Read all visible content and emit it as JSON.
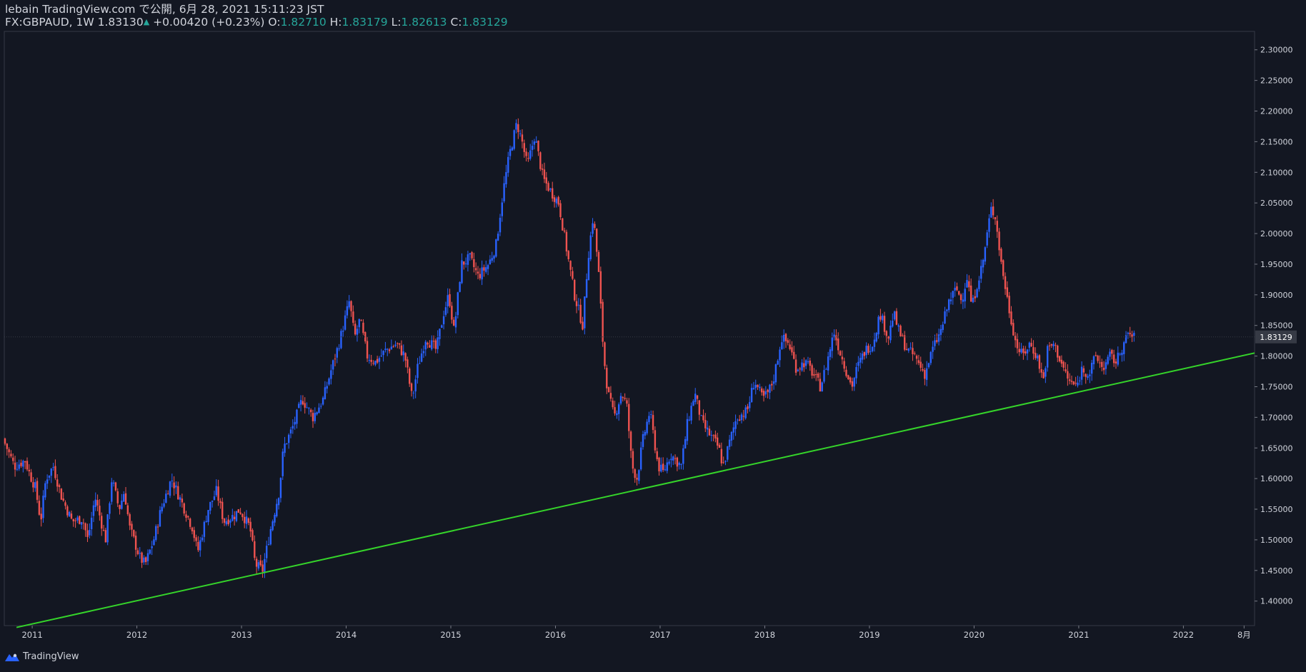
{
  "header": {
    "publish_line": "lebain TradingView.com で公開, 6月 28, 2021 15:11:23 JST",
    "symbol_prefix": "FX:GBPAUD, 1W",
    "last_price": "1.83130",
    "change": "+0.00420 (+0.23%)",
    "open_label": "O:",
    "open": "1.82710",
    "high_label": "H:",
    "high": "1.83179",
    "low_label": "L:",
    "low": "1.82613",
    "close_label": "C:",
    "close": "1.83129"
  },
  "footer": {
    "brand": "TradingView",
    "logo_icon": "tradingview-logo-icon"
  },
  "colors": {
    "background": "#131722",
    "up": "#2962ff",
    "down": "#ef5350",
    "trendline": "#35d42a",
    "text": "#d1d4dc",
    "accent": "#26a69a",
    "grid": "#2a2e39"
  },
  "chart_data": {
    "type": "candlestick",
    "title": "FX:GBPAUD, 1W",
    "ylim": [
      1.36,
      2.33
    ],
    "y_ticks": [
      "2.30000",
      "2.25000",
      "2.20000",
      "2.15000",
      "2.10000",
      "2.05000",
      "2.00000",
      "1.95000",
      "1.90000",
      "1.85000",
      "1.80000",
      "1.75000",
      "1.70000",
      "1.65000",
      "1.60000",
      "1.55000",
      "1.50000",
      "1.45000",
      "1.40000"
    ],
    "x_labels": [
      {
        "label": "2011",
        "t": 2011.0
      },
      {
        "label": "2012",
        "t": 2012.0
      },
      {
        "label": "2013",
        "t": 2013.0
      },
      {
        "label": "2014",
        "t": 2014.0
      },
      {
        "label": "2015",
        "t": 2015.0
      },
      {
        "label": "2016",
        "t": 2016.0
      },
      {
        "label": "2017",
        "t": 2017.0
      },
      {
        "label": "2018",
        "t": 2018.0
      },
      {
        "label": "2019",
        "t": 2019.0
      },
      {
        "label": "2020",
        "t": 2020.0
      },
      {
        "label": "2021",
        "t": 2021.0
      },
      {
        "label": "2022",
        "t": 2022.0
      },
      {
        "label": "8月",
        "t": 2022.58
      }
    ],
    "last_price_label": "1.83129",
    "last_price_value": 1.83129,
    "x_range": [
      2010.74,
      2022.68
    ],
    "trendline": {
      "t1": 2010.85,
      "p1": 1.357,
      "t2": 2022.68,
      "p2": 1.805
    },
    "price_path": [
      [
        2010.74,
        1.665
      ],
      [
        2010.85,
        1.62
      ],
      [
        2010.95,
        1.63
      ],
      [
        2011.0,
        1.605
      ],
      [
        2011.05,
        1.585
      ],
      [
        2011.1,
        1.53
      ],
      [
        2011.15,
        1.6
      ],
      [
        2011.22,
        1.62
      ],
      [
        2011.3,
        1.57
      ],
      [
        2011.4,
        1.53
      ],
      [
        2011.5,
        1.535
      ],
      [
        2011.55,
        1.5
      ],
      [
        2011.62,
        1.57
      ],
      [
        2011.72,
        1.5
      ],
      [
        2011.78,
        1.6
      ],
      [
        2011.85,
        1.55
      ],
      [
        2011.9,
        1.58
      ],
      [
        2011.95,
        1.52
      ],
      [
        2012.05,
        1.47
      ],
      [
        2012.1,
        1.46
      ],
      [
        2012.18,
        1.5
      ],
      [
        2012.25,
        1.55
      ],
      [
        2012.35,
        1.6
      ],
      [
        2012.45,
        1.56
      ],
      [
        2012.55,
        1.52
      ],
      [
        2012.6,
        1.48
      ],
      [
        2012.7,
        1.55
      ],
      [
        2012.78,
        1.58
      ],
      [
        2012.85,
        1.53
      ],
      [
        2012.95,
        1.54
      ],
      [
        2013.0,
        1.55
      ],
      [
        2013.1,
        1.52
      ],
      [
        2013.15,
        1.46
      ],
      [
        2013.22,
        1.45
      ],
      [
        2013.3,
        1.52
      ],
      [
        2013.38,
        1.58
      ],
      [
        2013.42,
        1.65
      ],
      [
        2013.5,
        1.68
      ],
      [
        2013.6,
        1.73
      ],
      [
        2013.7,
        1.7
      ],
      [
        2013.8,
        1.73
      ],
      [
        2013.88,
        1.78
      ],
      [
        2013.95,
        1.82
      ],
      [
        2014.05,
        1.89
      ],
      [
        2014.1,
        1.83
      ],
      [
        2014.15,
        1.86
      ],
      [
        2014.22,
        1.8
      ],
      [
        2014.3,
        1.79
      ],
      [
        2014.4,
        1.81
      ],
      [
        2014.5,
        1.82
      ],
      [
        2014.58,
        1.8
      ],
      [
        2014.65,
        1.73
      ],
      [
        2014.7,
        1.78
      ],
      [
        2014.78,
        1.83
      ],
      [
        2014.88,
        1.81
      ],
      [
        2014.95,
        1.87
      ],
      [
        2015.0,
        1.9
      ],
      [
        2015.05,
        1.84
      ],
      [
        2015.12,
        1.95
      ],
      [
        2015.2,
        1.96
      ],
      [
        2015.28,
        1.93
      ],
      [
        2015.38,
        1.95
      ],
      [
        2015.45,
        1.98
      ],
      [
        2015.52,
        2.07
      ],
      [
        2015.58,
        2.13
      ],
      [
        2015.65,
        2.18
      ],
      [
        2015.7,
        2.15
      ],
      [
        2015.75,
        2.11
      ],
      [
        2015.82,
        2.16
      ],
      [
        2015.9,
        2.09
      ],
      [
        2015.97,
        2.07
      ],
      [
        2016.05,
        2.05
      ],
      [
        2016.12,
        1.98
      ],
      [
        2016.2,
        1.9
      ],
      [
        2016.28,
        1.85
      ],
      [
        2016.33,
        1.96
      ],
      [
        2016.38,
        2.03
      ],
      [
        2016.43,
        1.94
      ],
      [
        2016.48,
        1.8
      ],
      [
        2016.52,
        1.74
      ],
      [
        2016.58,
        1.7
      ],
      [
        2016.65,
        1.74
      ],
      [
        2016.7,
        1.72
      ],
      [
        2016.75,
        1.62
      ],
      [
        2016.8,
        1.6
      ],
      [
        2016.85,
        1.66
      ],
      [
        2016.92,
        1.71
      ],
      [
        2017.0,
        1.62
      ],
      [
        2017.05,
        1.61
      ],
      [
        2017.12,
        1.64
      ],
      [
        2017.22,
        1.62
      ],
      [
        2017.28,
        1.69
      ],
      [
        2017.35,
        1.74
      ],
      [
        2017.42,
        1.69
      ],
      [
        2017.5,
        1.67
      ],
      [
        2017.58,
        1.65
      ],
      [
        2017.62,
        1.62
      ],
      [
        2017.7,
        1.67
      ],
      [
        2017.75,
        1.7
      ],
      [
        2017.85,
        1.71
      ],
      [
        2017.92,
        1.76
      ],
      [
        2018.0,
        1.73
      ],
      [
        2018.05,
        1.74
      ],
      [
        2018.1,
        1.76
      ],
      [
        2018.18,
        1.83
      ],
      [
        2018.25,
        1.82
      ],
      [
        2018.32,
        1.78
      ],
      [
        2018.4,
        1.79
      ],
      [
        2018.45,
        1.78
      ],
      [
        2018.55,
        1.75
      ],
      [
        2018.6,
        1.78
      ],
      [
        2018.68,
        1.84
      ],
      [
        2018.75,
        1.8
      ],
      [
        2018.85,
        1.75
      ],
      [
        2018.9,
        1.78
      ],
      [
        2018.98,
        1.81
      ],
      [
        2019.05,
        1.82
      ],
      [
        2019.12,
        1.87
      ],
      [
        2019.2,
        1.83
      ],
      [
        2019.25,
        1.87
      ],
      [
        2019.3,
        1.84
      ],
      [
        2019.38,
        1.81
      ],
      [
        2019.45,
        1.8
      ],
      [
        2019.55,
        1.77
      ],
      [
        2019.62,
        1.81
      ],
      [
        2019.7,
        1.84
      ],
      [
        2019.78,
        1.89
      ],
      [
        2019.85,
        1.91
      ],
      [
        2019.9,
        1.89
      ],
      [
        2019.95,
        1.93
      ],
      [
        2020.0,
        1.88
      ],
      [
        2020.05,
        1.92
      ],
      [
        2020.1,
        1.95
      ],
      [
        2020.18,
        2.04
      ],
      [
        2020.22,
        2.03
      ],
      [
        2020.28,
        1.95
      ],
      [
        2020.35,
        1.88
      ],
      [
        2020.42,
        1.82
      ],
      [
        2020.48,
        1.8
      ],
      [
        2020.55,
        1.82
      ],
      [
        2020.62,
        1.8
      ],
      [
        2020.68,
        1.76
      ],
      [
        2020.72,
        1.81
      ],
      [
        2020.78,
        1.82
      ],
      [
        2020.85,
        1.79
      ],
      [
        2020.92,
        1.76
      ],
      [
        2021.0,
        1.75
      ],
      [
        2021.05,
        1.78
      ],
      [
        2021.12,
        1.77
      ],
      [
        2021.18,
        1.8
      ],
      [
        2021.25,
        1.78
      ],
      [
        2021.32,
        1.8
      ],
      [
        2021.38,
        1.79
      ],
      [
        2021.42,
        1.81
      ],
      [
        2021.48,
        1.83
      ],
      [
        2021.5,
        1.84
      ],
      [
        2021.53,
        1.83
      ]
    ],
    "note": "Approximate weekly path read from the chart; candles are drawn from this series."
  }
}
